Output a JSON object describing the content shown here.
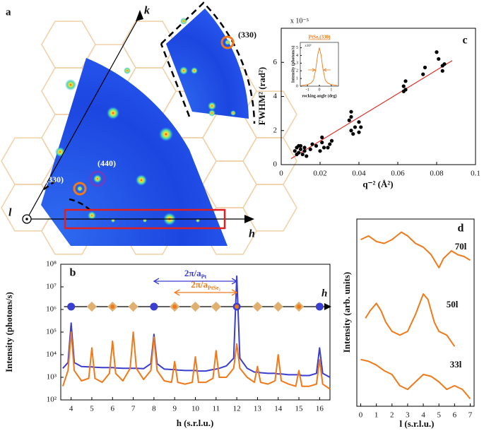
{
  "panel_a": {
    "letter": "a",
    "k": "k",
    "h": "h",
    "l": "l",
    "spot_top": "(330)",
    "spot_440": "(440)",
    "spot_left": "(330)"
  },
  "chart_data": [
    {
      "type": "scatter",
      "panel": "c",
      "multiplier": "x 10⁻⁵",
      "xlabel": "q⁻² (Å²)",
      "ylabel": "FWHM² (rad²)",
      "xlim": [
        0,
        0.1
      ],
      "ylim": [
        0,
        8
      ],
      "xticks": [
        0,
        0.02,
        0.04,
        0.06,
        0.08,
        0.1
      ],
      "yticks": [
        0,
        2,
        4,
        6
      ],
      "color": "#000000",
      "x": [
        0.007,
        0.008,
        0.008,
        0.009,
        0.009,
        0.01,
        0.01,
        0.011,
        0.012,
        0.012,
        0.013,
        0.015,
        0.016,
        0.018,
        0.02,
        0.021,
        0.021,
        0.022,
        0.024,
        0.025,
        0.026,
        0.035,
        0.036,
        0.036,
        0.036,
        0.037,
        0.038,
        0.04,
        0.041,
        0.04,
        0.063,
        0.063,
        0.064,
        0.064,
        0.073,
        0.074,
        0.08,
        0.081,
        0.083,
        0.083,
        0.084
      ],
      "values": [
        0.8,
        1.0,
        0.6,
        1.1,
        0.7,
        0.9,
        1.1,
        0.6,
        0.8,
        1.0,
        0.5,
        0.9,
        1.2,
        1.1,
        0.8,
        1.3,
        1.6,
        1.0,
        1.0,
        1.2,
        1.4,
        2.6,
        2.8,
        3.1,
        2.0,
        1.8,
        2.2,
        2.5,
        2.2,
        1.9,
        4.3,
        4.6,
        4.9,
        4.4,
        5.3,
        5.7,
        6.6,
        6.2,
        5.5,
        5.8,
        5.9
      ],
      "fit": {
        "x": [
          0.005,
          0.088
        ],
        "values": [
          0.35,
          6.1
        ],
        "color": "#e0302a"
      }
    },
    {
      "type": "line",
      "title": "PtSe₂(330)",
      "multiplier": "x10⁵",
      "xlabel": "rocking angle (deg)",
      "ylabel": "Intensity (photons/s)",
      "xlim": [
        -1.6,
        1.6
      ],
      "ylim": [
        0,
        5.7
      ],
      "xticks": [
        -1,
        0,
        1
      ],
      "yticks": [
        0,
        1,
        2,
        3,
        4,
        5
      ],
      "x": [
        -1.5,
        -1,
        -0.7,
        -0.5,
        -0.3,
        -0.15,
        0,
        0.15,
        0.3,
        0.5,
        0.7,
        1,
        1.5
      ],
      "series": [
        {
          "color": "#f07a1a",
          "values": [
            0.1,
            0.2,
            0.4,
            0.8,
            2.2,
            4,
            5,
            4,
            2.2,
            0.8,
            0.4,
            0.2,
            0.1
          ]
        }
      ]
    },
    {
      "type": "line",
      "panel": "b",
      "xlabel": "h (s.r.l.u.)",
      "ylabel": "Intensity (photons/s)",
      "axis_name": "h",
      "yscale": "log",
      "annotations": [
        {
          "text": "2π/a",
          "sub": "Pt"
        },
        {
          "text": "2π/a",
          "sub": "PtSe₂"
        }
      ],
      "xlim": [
        3.5,
        16.5
      ],
      "ylim": [
        100,
        100000000
      ],
      "xticks": [
        4,
        5,
        6,
        7,
        8,
        9,
        10,
        11,
        12,
        13,
        14,
        15,
        16
      ],
      "yticks": [
        {
          "value": 100,
          "label": "10²"
        },
        {
          "value": 1000,
          "label": "10³"
        },
        {
          "value": 10000,
          "label": "10⁴"
        },
        {
          "value": 100000,
          "label": "10⁵"
        },
        {
          "value": 1000000,
          "label": "10⁶"
        },
        {
          "value": 10000000,
          "label": "10⁷"
        },
        {
          "value": 100000000,
          "label": "10⁸"
        }
      ],
      "x": [
        3.6,
        3.85,
        4,
        4.15,
        4.5,
        4.85,
        5,
        5.15,
        5.5,
        5.85,
        6,
        6.15,
        6.5,
        6.85,
        7,
        7.15,
        7.5,
        7.85,
        8,
        8.15,
        8.5,
        8.85,
        9,
        9.15,
        9.5,
        9.85,
        10,
        10.15,
        10.5,
        10.85,
        11,
        11.15,
        11.5,
        11.85,
        12,
        12.15,
        12.5,
        12.85,
        13,
        13.15,
        13.5,
        13.85,
        14,
        14.15,
        14.5,
        14.85,
        15,
        15.15,
        15.5,
        15.85,
        16,
        16.15,
        16.5
      ],
      "series": [
        {
          "color": "#3a3fd0",
          "values": [
            2500,
            4500,
            250000,
            4500,
            3000,
            2900,
            2900,
            2800,
            2700,
            2700,
            2700,
            2600,
            2500,
            2500,
            2500,
            2500,
            2400,
            4000,
            80000,
            4000,
            2300,
            2200,
            2200,
            2100,
            2000,
            2000,
            2000,
            1900,
            1900,
            2200,
            2300,
            2500,
            3200,
            7000,
            30000000,
            7000,
            2500,
            1700,
            1700,
            1600,
            1500,
            1500,
            1400,
            1400,
            1300,
            1300,
            1300,
            1200,
            1200,
            1500,
            20000,
            1500,
            1000
          ]
        },
        {
          "color": "#f07a1a",
          "values": [
            400,
            2000,
            100000,
            2000,
            700,
            900,
            20000,
            900,
            600,
            1500,
            40000,
            1500,
            700,
            2500,
            100000,
            2500,
            800,
            2000,
            60000,
            2000,
            700,
            600,
            5000,
            600,
            500,
            600,
            8000,
            600,
            600,
            900,
            15000,
            1000,
            1000,
            2500,
            30000,
            2500,
            1000,
            600,
            3000,
            600,
            500,
            700,
            10000,
            700,
            500,
            400,
            2000,
            400,
            400,
            500,
            6000,
            500,
            300
          ]
        }
      ]
    },
    {
      "type": "line",
      "panel": "d",
      "xlabel": "l (s.r.l.u.)",
      "ylabel": "Intensity (arb. units)",
      "xlim": [
        -0.25,
        7.25
      ],
      "ylim": [
        0,
        10
      ],
      "xticks": [
        0,
        1,
        2,
        3,
        4,
        5,
        6,
        7
      ],
      "series": [
        {
          "name": "70l",
          "color": "#f07a1a",
          "x": [
            0,
            0.5,
            1,
            1.5,
            2,
            2.6,
            3,
            3.5,
            4,
            4.5,
            5,
            5.3,
            5.8,
            6.2,
            6.6,
            7
          ],
          "values": [
            8.9,
            9.1,
            8.8,
            8.7,
            8.9,
            9.3,
            9.1,
            8.7,
            8.5,
            8.1,
            7.4,
            7.9,
            8.3,
            8.1,
            8.0,
            7.8
          ]
        },
        {
          "name": "50l",
          "color": "#f07a1a",
          "x": [
            0.3,
            0.6,
            1,
            1.3,
            1.6,
            2,
            2.5,
            3,
            3.5,
            4,
            4.3,
            4.7,
            5,
            5.5,
            6
          ],
          "values": [
            4.7,
            5.1,
            5.5,
            5.1,
            4.5,
            4.0,
            3.8,
            4.0,
            4.9,
            6.0,
            5.7,
            4.5,
            4.0,
            3.8,
            3.2
          ]
        },
        {
          "name": "33l",
          "color": "#f07a1a",
          "x": [
            0,
            0.5,
            1,
            1.5,
            2,
            2.5,
            3,
            3.5,
            4,
            4.5,
            5,
            5.5,
            6,
            6.5,
            7
          ],
          "values": [
            2.5,
            2.4,
            2.2,
            1.9,
            1.7,
            1.1,
            0.9,
            1.3,
            1.7,
            1.6,
            1.3,
            0.9,
            1.1,
            0.9,
            0.4
          ]
        }
      ]
    }
  ]
}
